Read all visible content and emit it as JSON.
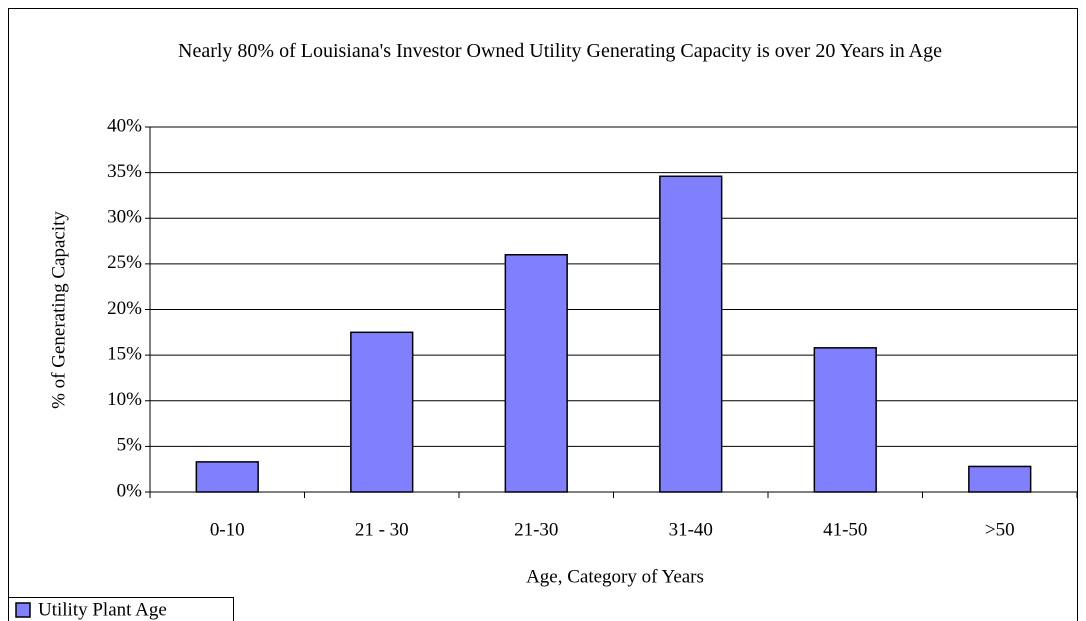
{
  "chart_data": {
    "type": "bar",
    "title": "Nearly 80% of Louisiana's Investor Owned Utility Generating Capacity is over 20 Years in Age",
    "xlabel": "Age, Category of Years",
    "ylabel": "% of Generating Capacity",
    "categories": [
      "0-10",
      "21 - 30",
      "21-30",
      "31-40",
      "41-50",
      ">50"
    ],
    "series": [
      {
        "name": "Utility Plant Age",
        "color": "#8080ff",
        "values": [
          3.3,
          17.5,
          26.0,
          34.6,
          15.8,
          2.8
        ]
      }
    ],
    "ylim": [
      0,
      40
    ],
    "yticks": [
      {
        "value": 0,
        "label": "0%"
      },
      {
        "value": 5,
        "label": "5%"
      },
      {
        "value": 10,
        "label": "10%"
      },
      {
        "value": 15,
        "label": "15%"
      },
      {
        "value": 20,
        "label": "20%"
      },
      {
        "value": 25,
        "label": "25%"
      },
      {
        "value": 30,
        "label": "30%"
      },
      {
        "value": 35,
        "label": "35%"
      },
      {
        "value": 40,
        "label": "40%"
      }
    ],
    "grid": true,
    "legend": "bottom-left"
  }
}
